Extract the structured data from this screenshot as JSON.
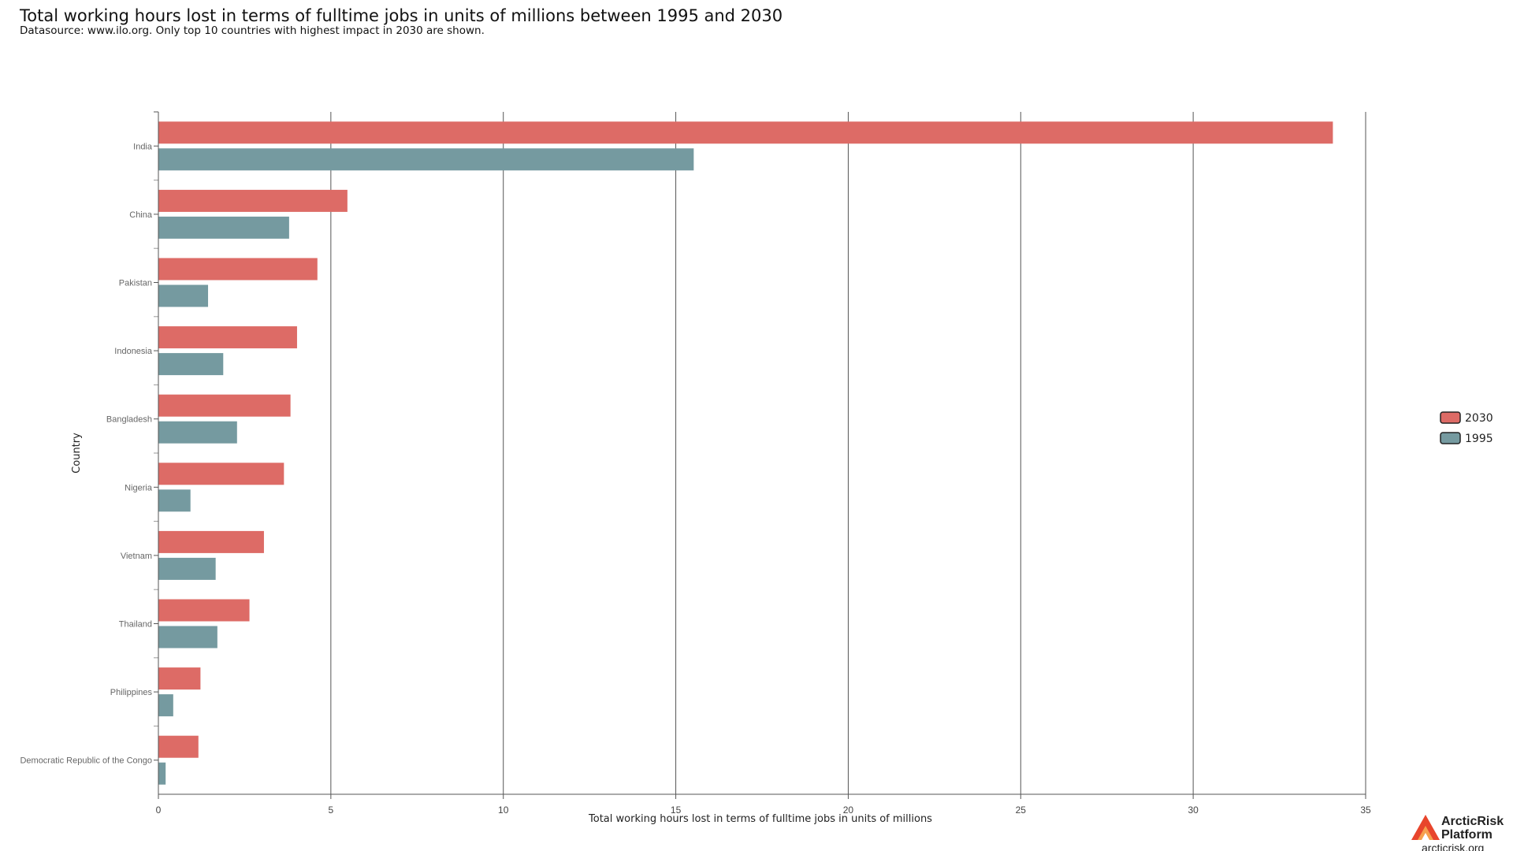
{
  "chart_data": {
    "type": "bar",
    "orientation": "horizontal",
    "title": "Total working hours lost in terms of fulltime jobs in units of millions between 1995 and 2030",
    "subtitle": "Datasource: www.ilo.org. Only top 10 countries with highest impact in 2030 are shown.",
    "xlabel": "Total working hours lost in terms of fulltime jobs in units of millions",
    "ylabel": "Country",
    "xlim": [
      0,
      35
    ],
    "xticks": [
      "0",
      "5",
      "10",
      "15",
      "20",
      "25",
      "30",
      "35"
    ],
    "grid": "vertical",
    "legend_position": "right",
    "categories": [
      "India",
      "China",
      "Pakistan",
      "Indonesia",
      "Bangladesh",
      "Nigeria",
      "Vietnam",
      "Thailand",
      "Philippines",
      "Democratic Republic of the Congo"
    ],
    "series": [
      {
        "name": "2030",
        "color": "#dd6b66",
        "values": [
          34.05,
          5.48,
          4.61,
          4.02,
          3.83,
          3.64,
          3.06,
          2.64,
          1.22,
          1.16
        ]
      },
      {
        "name": "1995",
        "color": "#759aa0",
        "values": [
          15.52,
          3.79,
          1.44,
          1.88,
          2.28,
          0.93,
          1.66,
          1.71,
          0.43,
          0.21
        ]
      }
    ]
  },
  "branding": {
    "name_line1": "ArcticRisk",
    "name_line2": "Platform",
    "url": "arcticrisk.org",
    "logo_icon": "arcticrisk-logo-icon",
    "logo_colors": [
      "#e8452c",
      "#f27a3a"
    ]
  }
}
